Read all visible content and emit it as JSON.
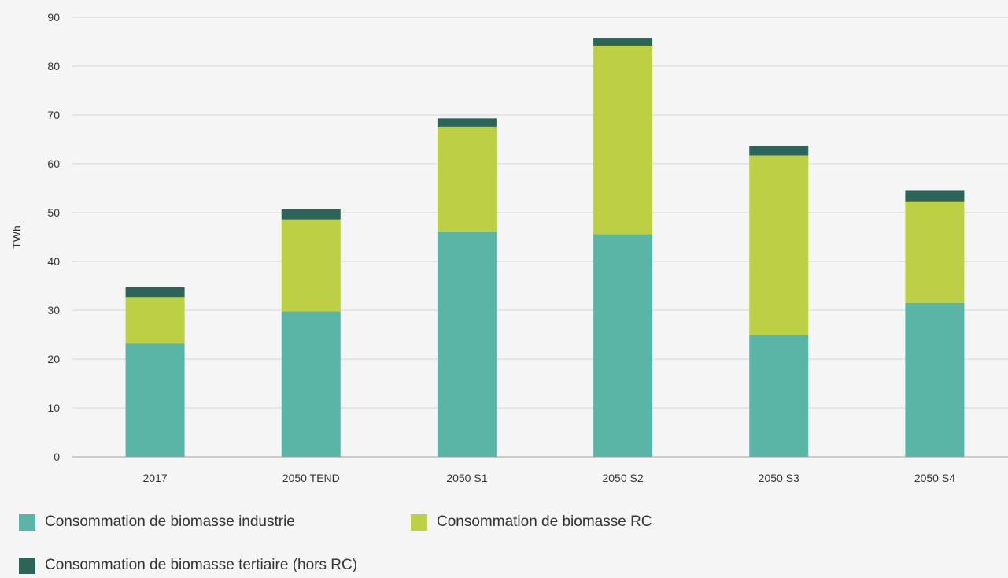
{
  "chart_data": {
    "type": "bar",
    "stacked": true,
    "title": "",
    "xlabel": "",
    "ylabel": "TWh",
    "ylim": [
      0,
      90
    ],
    "yticks": [
      0,
      10,
      20,
      30,
      40,
      50,
      60,
      70,
      80,
      90
    ],
    "grid": true,
    "legend_position": "bottom",
    "categories": [
      "2017",
      "2050 TEND",
      "2050 S1",
      "2050 S2",
      "2050 S3",
      "2050 S4"
    ],
    "series": [
      {
        "name": "Consommation de biomasse industrie",
        "color": "#5bb5a6",
        "values": [
          23.2,
          29.8,
          46.1,
          45.6,
          24.9,
          31.5
        ]
      },
      {
        "name": "Consommation de biomasse RC",
        "color": "#bccf45",
        "values": [
          9.5,
          18.8,
          21.5,
          38.6,
          36.8,
          20.8
        ]
      },
      {
        "name": "Consommation de biomasse tertiaire (hors RC)",
        "color": "#2c6459",
        "values": [
          2.0,
          2.1,
          1.7,
          1.6,
          2.0,
          2.3
        ]
      }
    ]
  }
}
